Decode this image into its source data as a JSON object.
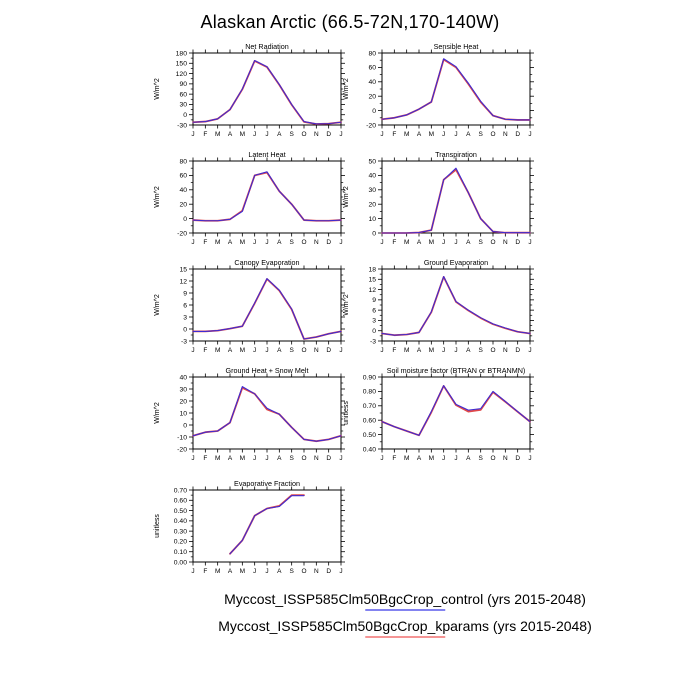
{
  "page": {
    "title": "Alaskan Arctic (66.5-72N,170-140W)",
    "background": "#ffffff"
  },
  "colors": {
    "control_line": "#3c2bd4",
    "kparams_line": "#e04848",
    "legend_control": "#8383f0",
    "legend_kparams": "#f59595",
    "axis": "#000000",
    "text": "#000000"
  },
  "months": [
    "J",
    "F",
    "M",
    "A",
    "M",
    "J",
    "J",
    "A",
    "S",
    "O",
    "N",
    "D",
    "J"
  ],
  "legend": {
    "entries": [
      {
        "name": "control",
        "label": "Myccost_ISSP585Clm50BgcCrop_control (yrs 2015-2048)",
        "color": "#8383f0"
      },
      {
        "name": "kparams",
        "label": "Myccost_ISSP585Clm50BgcCrop_kparams (yrs 2015-2048)",
        "color": "#f59595"
      }
    ]
  },
  "chart_data": [
    {
      "type": "line",
      "title": "Net Radiation",
      "ylabel": "W/m^2",
      "xlabel": "",
      "x_categories": [
        "J",
        "F",
        "M",
        "A",
        "M",
        "J",
        "J",
        "A",
        "S",
        "O",
        "N",
        "D",
        "J"
      ],
      "ylim": [
        -30,
        180
      ],
      "yticks": [
        -30,
        0,
        30,
        60,
        90,
        120,
        150,
        180
      ],
      "decimals": 0,
      "grid": false,
      "series": [
        {
          "name": "kparams",
          "values": [
            -22,
            -20,
            -12,
            15,
            74,
            157,
            139,
            87,
            29,
            -21,
            -27,
            -26,
            -22
          ]
        },
        {
          "name": "control",
          "values": [
            -22,
            -20,
            -12,
            15,
            75,
            158,
            140,
            88,
            30,
            -20,
            -27,
            -26,
            -22
          ]
        }
      ]
    },
    {
      "type": "line",
      "title": "Sensible Heat",
      "ylabel": "W/m^2",
      "xlabel": "",
      "x_categories": [
        "J",
        "F",
        "M",
        "A",
        "M",
        "J",
        "J",
        "A",
        "S",
        "O",
        "N",
        "D",
        "J"
      ],
      "ylim": [
        -20,
        80
      ],
      "yticks": [
        -20,
        0,
        20,
        40,
        60,
        80
      ],
      "decimals": 0,
      "grid": false,
      "series": [
        {
          "name": "kparams",
          "values": [
            -12,
            -10,
            -6,
            2,
            12,
            71,
            60,
            37,
            12,
            -7,
            -12,
            -13,
            -13
          ]
        },
        {
          "name": "control",
          "values": [
            -12,
            -10,
            -6,
            2,
            12,
            72,
            61,
            38,
            13,
            -7,
            -12,
            -13,
            -13
          ]
        }
      ]
    },
    {
      "type": "line",
      "title": "Latent Heat",
      "ylabel": "W/m^2",
      "xlabel": "",
      "x_categories": [
        "J",
        "F",
        "M",
        "A",
        "M",
        "J",
        "J",
        "A",
        "S",
        "O",
        "N",
        "D",
        "J"
      ],
      "ylim": [
        -20,
        80
      ],
      "yticks": [
        -20,
        0,
        20,
        40,
        60,
        80
      ],
      "decimals": 0,
      "grid": false,
      "series": [
        {
          "name": "kparams",
          "values": [
            -2,
            -3,
            -3,
            -1,
            11,
            60,
            64,
            38,
            20,
            -2,
            -3,
            -3,
            -2
          ]
        },
        {
          "name": "control",
          "values": [
            -2,
            -3,
            -3,
            -1,
            10,
            60,
            65,
            38,
            20,
            -2,
            -3,
            -3,
            -2
          ]
        }
      ]
    },
    {
      "type": "line",
      "title": "Transpiration",
      "ylabel": "W/m^2",
      "xlabel": "",
      "x_categories": [
        "J",
        "F",
        "M",
        "A",
        "M",
        "J",
        "J",
        "A",
        "S",
        "O",
        "N",
        "D",
        "J"
      ],
      "ylim": [
        0,
        50
      ],
      "yticks": [
        0,
        10,
        20,
        30,
        40,
        50
      ],
      "decimals": 0,
      "grid": false,
      "series": [
        {
          "name": "kparams",
          "values": [
            0,
            0,
            0,
            0.3,
            2,
            37,
            44,
            28,
            10,
            1,
            0.2,
            0.2,
            0.2
          ]
        },
        {
          "name": "control",
          "values": [
            0,
            0,
            0,
            0.3,
            2,
            37,
            45,
            28,
            10,
            1,
            0.2,
            0.2,
            0.2
          ]
        }
      ]
    },
    {
      "type": "line",
      "title": "Canopy Evaporation",
      "ylabel": "W/m^2",
      "xlabel": "",
      "x_categories": [
        "J",
        "F",
        "M",
        "A",
        "M",
        "J",
        "J",
        "A",
        "S",
        "O",
        "N",
        "D",
        "J"
      ],
      "ylim": [
        -3,
        15
      ],
      "yticks": [
        -3,
        0,
        3,
        6,
        9,
        12,
        15
      ],
      "decimals": 0,
      "grid": false,
      "series": [
        {
          "name": "kparams",
          "values": [
            -0.6,
            -0.6,
            -0.4,
            0.1,
            0.7,
            6.4,
            12.5,
            9.6,
            4.9,
            -2.5,
            -2,
            -1.2,
            -0.6
          ]
        },
        {
          "name": "control",
          "values": [
            -0.6,
            -0.6,
            -0.4,
            0.1,
            0.7,
            6.5,
            12.6,
            9.7,
            5,
            -2.5,
            -2,
            -1.2,
            -0.6
          ]
        }
      ]
    },
    {
      "type": "line",
      "title": "Ground Evaporation",
      "ylabel": "W/m^2",
      "xlabel": "",
      "x_categories": [
        "J",
        "F",
        "M",
        "A",
        "M",
        "J",
        "J",
        "A",
        "S",
        "O",
        "N",
        "D",
        "J"
      ],
      "ylim": [
        -3,
        18
      ],
      "yticks": [
        -3,
        0,
        3,
        6,
        9,
        12,
        15,
        18
      ],
      "decimals": 0,
      "grid": false,
      "series": [
        {
          "name": "kparams",
          "values": [
            -0.8,
            -1.3,
            -1.1,
            -0.5,
            5.4,
            15.7,
            8.4,
            5.9,
            3.7,
            1.9,
            0.7,
            -0.3,
            -0.8
          ]
        },
        {
          "name": "control",
          "values": [
            -0.8,
            -1.3,
            -1.1,
            -0.5,
            5.5,
            15.8,
            8.5,
            6,
            3.8,
            2,
            0.8,
            -0.3,
            -0.8
          ]
        }
      ]
    },
    {
      "type": "line",
      "title": "Ground Heat + Snow Melt",
      "ylabel": "W/m^2",
      "xlabel": "",
      "x_categories": [
        "J",
        "F",
        "M",
        "A",
        "M",
        "J",
        "J",
        "A",
        "S",
        "O",
        "N",
        "D",
        "J"
      ],
      "ylim": [
        -20,
        40
      ],
      "yticks": [
        -20,
        -10,
        0,
        10,
        20,
        30,
        40
      ],
      "decimals": 0,
      "grid": false,
      "series": [
        {
          "name": "kparams",
          "values": [
            -9,
            -6,
            -5,
            2,
            31,
            26,
            13,
            9,
            -2,
            -12,
            -13.5,
            -12,
            -9
          ]
        },
        {
          "name": "control",
          "values": [
            -9,
            -6,
            -5,
            2,
            32,
            26,
            14,
            9,
            -2,
            -12,
            -13.5,
            -12,
            -9
          ]
        }
      ]
    },
    {
      "type": "line",
      "title": "Soil moisture factor (BTRAN or BTRANMN)",
      "ylabel": "unitless",
      "xlabel": "",
      "x_categories": [
        "J",
        "F",
        "M",
        "A",
        "M",
        "J",
        "J",
        "A",
        "S",
        "O",
        "N",
        "D",
        "J"
      ],
      "ylim": [
        0.4,
        0.9
      ],
      "yticks": [
        0.4,
        0.5,
        0.6,
        0.7,
        0.8,
        0.9
      ],
      "decimals": 2,
      "grid": false,
      "series": [
        {
          "name": "kparams",
          "values": [
            0.59,
            0.555,
            0.525,
            0.495,
            0.655,
            0.838,
            0.705,
            0.66,
            0.672,
            0.795,
            0.728,
            0.658,
            0.59
          ]
        },
        {
          "name": "control",
          "values": [
            0.59,
            0.555,
            0.525,
            0.495,
            0.66,
            0.84,
            0.71,
            0.67,
            0.68,
            0.8,
            0.73,
            0.66,
            0.59
          ]
        }
      ]
    },
    {
      "type": "line",
      "title": "Evaporative Fraction",
      "ylabel": "unitless",
      "xlabel": "",
      "x_categories": [
        "J",
        "F",
        "M",
        "A",
        "M",
        "J",
        "J",
        "A",
        "S",
        "O",
        "N",
        "D",
        "J"
      ],
      "ylim": [
        0.0,
        0.7
      ],
      "yticks": [
        0.0,
        0.1,
        0.2,
        0.3,
        0.4,
        0.5,
        0.6,
        0.7
      ],
      "decimals": 2,
      "grid": false,
      "series": [
        {
          "name": "kparams",
          "values": [
            null,
            null,
            null,
            0.08,
            0.21,
            0.45,
            0.52,
            0.545,
            0.65,
            0.65,
            null,
            null,
            null
          ]
        },
        {
          "name": "control",
          "values": [
            null,
            null,
            null,
            0.08,
            0.21,
            0.45,
            0.52,
            0.54,
            0.645,
            0.645,
            null,
            null,
            null
          ]
        }
      ]
    }
  ]
}
